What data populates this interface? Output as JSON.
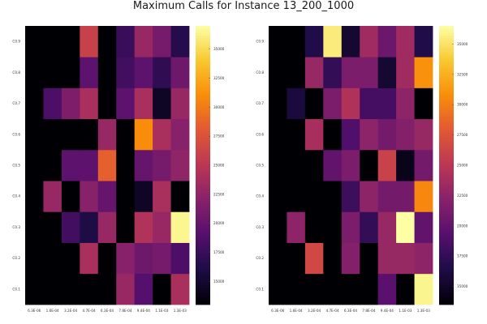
{
  "title": "Maximum Calls for Instance 13_200_1000",
  "chart_data": [
    {
      "type": "heatmap",
      "x_labels": [
        "6.3E-06",
        "1.6E-04",
        "3.2E-04",
        "4.7E-04",
        "6.3E-04",
        "7.8E-04",
        "9.4E-04",
        "1.1E-03",
        "1.3E-03"
      ],
      "y_labels": [
        "C0.1",
        "C0.2",
        "C0.3",
        "C0.4",
        "C0.5",
        "C0.6",
        "C0.7",
        "C0.8",
        "C0.9"
      ],
      "colorbar": {
        "min": 13000,
        "max": 37000,
        "ticks": [
          15000,
          17500,
          20000,
          22500,
          25000,
          27500,
          30000,
          32500,
          35000
        ],
        "colormap": "inferno"
      },
      "values": [
        [
          13000,
          13000,
          13000,
          13000,
          13000,
          23000,
          19000,
          13000,
          24000
        ],
        [
          13000,
          13000,
          13000,
          24000,
          13000,
          22000,
          20500,
          21000,
          18500
        ],
        [
          13000,
          13000,
          18000,
          16000,
          23000,
          13000,
          24500,
          23000,
          36500
        ],
        [
          13000,
          23000,
          13000,
          22000,
          20000,
          13000,
          14500,
          24000,
          13000
        ],
        [
          13000,
          13000,
          19500,
          19500,
          28500,
          13000,
          20000,
          21000,
          22500
        ],
        [
          13000,
          13000,
          13000,
          13000,
          23000,
          13000,
          31000,
          24000,
          22000
        ],
        [
          13000,
          18500,
          21500,
          24000,
          13000,
          19500,
          24000,
          14500,
          23000
        ],
        [
          13000,
          13000,
          13000,
          19500,
          13000,
          18000,
          19500,
          17000,
          20500
        ],
        [
          13000,
          13000,
          13000,
          26000,
          13000,
          17500,
          23000,
          21000,
          16500
        ]
      ]
    },
    {
      "type": "heatmap",
      "x_labels": [
        "6.3E-06",
        "1.6E-04",
        "3.2E-04",
        "4.7E-04",
        "6.3E-04",
        "7.8E-04",
        "9.4E-04",
        "1.1E-03",
        "1.3E-03"
      ],
      "y_labels": [
        "C0.1",
        "C0.2",
        "C0.3",
        "C0.4",
        "C0.5",
        "C0.6",
        "C0.7",
        "C0.8",
        "C0.9"
      ],
      "colorbar": {
        "min": 13500,
        "max": 36500,
        "ticks": [
          15000,
          17500,
          20000,
          22500,
          25000,
          27500,
          30000,
          32500,
          35000
        ],
        "colormap": "inferno"
      },
      "values": [
        [
          13000,
          13000,
          13000,
          13000,
          13000,
          13000,
          19500,
          13000,
          36000
        ],
        [
          13000,
          13000,
          26500,
          13000,
          22000,
          13000,
          23000,
          23000,
          22500
        ],
        [
          13000,
          22500,
          13000,
          13000,
          21500,
          17500,
          23000,
          36500,
          20000
        ],
        [
          13000,
          13000,
          13000,
          13000,
          18000,
          22500,
          21000,
          21000,
          30500
        ],
        [
          13000,
          13000,
          13000,
          20000,
          21500,
          13000,
          26000,
          14500,
          21000
        ],
        [
          13000,
          13000,
          24000,
          13000,
          19000,
          22500,
          21000,
          22000,
          23000
        ],
        [
          13000,
          16000,
          13000,
          21500,
          24500,
          18500,
          18500,
          22500,
          13500
        ],
        [
          13000,
          13000,
          23000,
          17500,
          21500,
          21500,
          15500,
          23500,
          31000
        ],
        [
          13000,
          13000,
          16500,
          35500,
          15500,
          23500,
          20500,
          23500,
          16500
        ]
      ]
    }
  ]
}
